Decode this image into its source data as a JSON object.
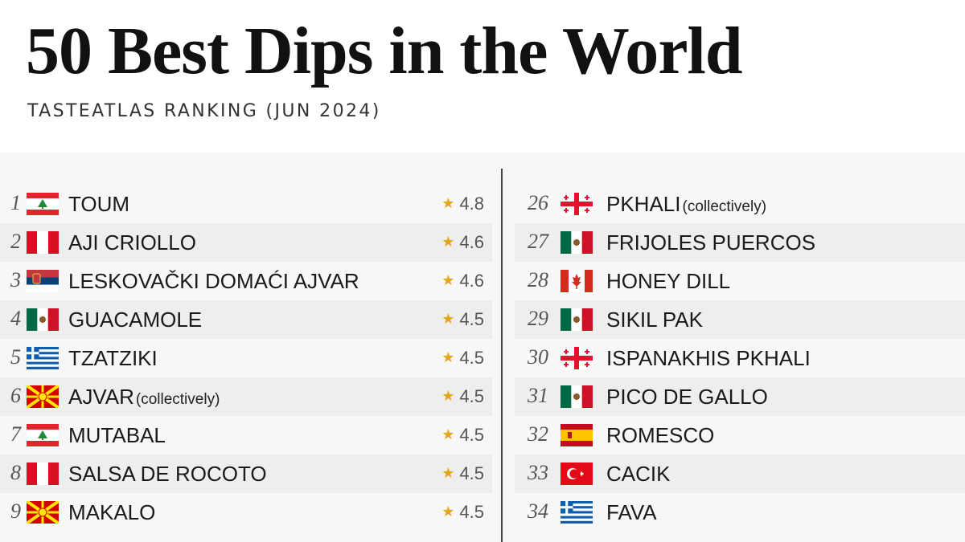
{
  "title": "50 Best Dips in the World",
  "subtitle": "TASTEATLAS RANKING (JUN 2024)",
  "left_column": [
    {
      "rank": "1",
      "flag": "lebanon-flag",
      "name": "TOUM",
      "note": "",
      "rating": "4.8"
    },
    {
      "rank": "2",
      "flag": "peru-flag",
      "name": "AJI CRIOLLO",
      "note": "",
      "rating": "4.6"
    },
    {
      "rank": "3",
      "flag": "serbia-flag",
      "name": "LESKOVAČKI DOMAĆI AJVAR",
      "note": "",
      "rating": "4.6"
    },
    {
      "rank": "4",
      "flag": "mexico-flag",
      "name": "GUACAMOLE",
      "note": "",
      "rating": "4.5"
    },
    {
      "rank": "5",
      "flag": "greece-flag",
      "name": "TZATZIKI",
      "note": "",
      "rating": "4.5"
    },
    {
      "rank": "6",
      "flag": "north-macedonia-flag",
      "name": "AJVAR",
      "note": "(collectively)",
      "rating": "4.5"
    },
    {
      "rank": "7",
      "flag": "lebanon-flag",
      "name": "MUTABAL",
      "note": "",
      "rating": "4.5"
    },
    {
      "rank": "8",
      "flag": "peru-flag",
      "name": "SALSA DE ROCOTO",
      "note": "",
      "rating": "4.5"
    },
    {
      "rank": "9",
      "flag": "north-macedonia-flag",
      "name": "MAKALO",
      "note": "",
      "rating": "4.5"
    }
  ],
  "right_column": [
    {
      "rank": "26",
      "flag": "georgia-flag",
      "name": "PKHALI",
      "note": "(collectively)"
    },
    {
      "rank": "27",
      "flag": "mexico-flag",
      "name": "FRIJOLES PUERCOS",
      "note": ""
    },
    {
      "rank": "28",
      "flag": "canada-flag",
      "name": "HONEY DILL",
      "note": ""
    },
    {
      "rank": "29",
      "flag": "mexico-flag",
      "name": "SIKIL PAK",
      "note": ""
    },
    {
      "rank": "30",
      "flag": "georgia-flag",
      "name": "ISPANAKHIS PKHALI",
      "note": ""
    },
    {
      "rank": "31",
      "flag": "mexico-flag",
      "name": "PICO DE GALLO",
      "note": ""
    },
    {
      "rank": "32",
      "flag": "spain-flag",
      "name": "ROMESCO",
      "note": ""
    },
    {
      "rank": "33",
      "flag": "turkey-flag",
      "name": "CACIK",
      "note": ""
    },
    {
      "rank": "34",
      "flag": "greece-flag",
      "name": "FAVA",
      "note": ""
    }
  ]
}
